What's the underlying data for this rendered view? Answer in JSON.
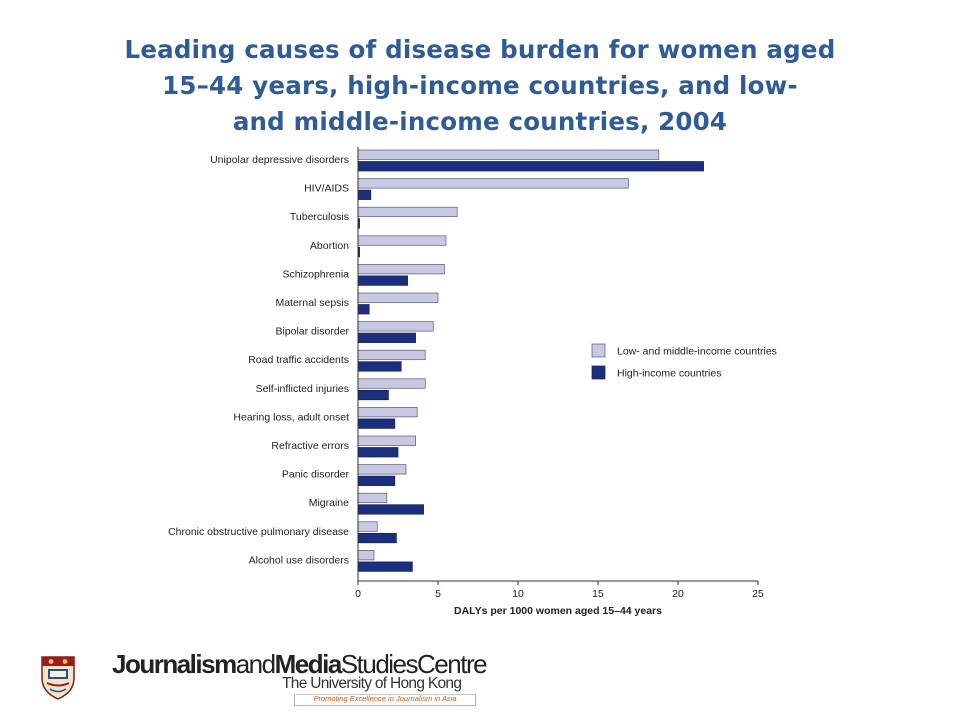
{
  "title_lines": [
    "Leading causes of disease burden for women aged",
    "15–44 years, high-income countries, and low-",
    "and middle-income countries, 2004"
  ],
  "chart_data": {
    "type": "bar",
    "orientation": "horizontal",
    "categories": [
      "Unipolar depressive disorders",
      "HIV/AIDS",
      "Tuberculosis",
      "Abortion",
      "Schizophrenia",
      "Maternal sepsis",
      "Bipolar disorder",
      "Road traffic accidents",
      "Self-inflicted injuries",
      "Hearing loss, adult onset",
      "Refractive errors",
      "Panic disorder",
      "Migraine",
      "Chronic obstructive pulmonary disease",
      "Alcohol use disorders"
    ],
    "series": [
      {
        "name": "Low- and middle-income countries",
        "color": "#c9c8e2",
        "values": [
          18.8,
          16.9,
          6.2,
          5.5,
          5.4,
          5.0,
          4.7,
          4.2,
          4.2,
          3.7,
          3.6,
          3.0,
          1.8,
          1.2,
          1.0
        ]
      },
      {
        "name": "High-income countries",
        "color": "#1b2f7e",
        "values": [
          21.6,
          0.8,
          0.1,
          0.1,
          3.1,
          0.7,
          3.6,
          2.7,
          1.9,
          2.3,
          2.5,
          2.3,
          4.1,
          2.4,
          3.4
        ]
      }
    ],
    "xlim": [
      0,
      25
    ],
    "xticks": [
      0,
      5,
      10,
      15,
      20,
      25
    ],
    "xlabel": "DALYs per 1000 women aged 15–44 years",
    "legend_position": "right",
    "grid": false
  },
  "footer": {
    "centre_bold_1": "Journalism",
    "centre_light_1": "and",
    "centre_bold_2": "Media",
    "centre_light_2": "Studies",
    "centre_light_3": "Centre",
    "university": "The University of Hong Kong",
    "tagline": "Promoting Excellence in Journalism in Asia",
    "crest_icon": "university-crest-icon"
  }
}
